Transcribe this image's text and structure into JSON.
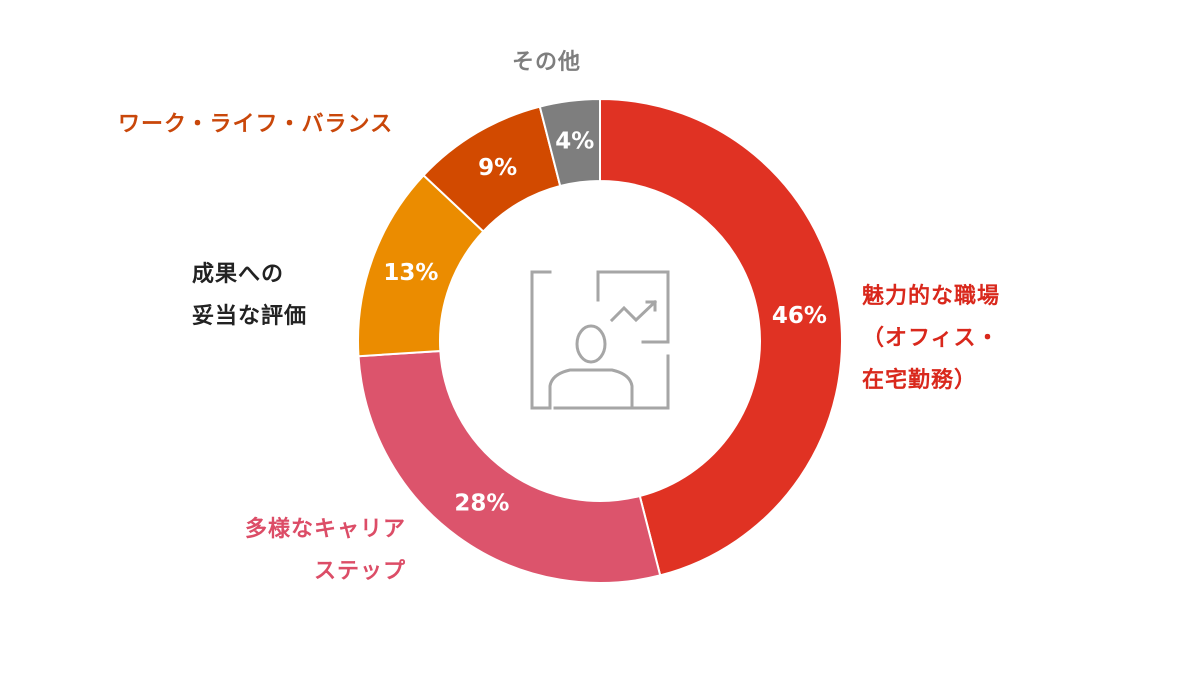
{
  "chart_data": {
    "type": "pie",
    "title": "",
    "slices": [
      {
        "label": "魅力的な職場\n（オフィス・\n在宅勤務）",
        "value": 46,
        "value_label": "46%",
        "color": "#e03223"
      },
      {
        "label": "多様なキャリア\nステップ",
        "value": 28,
        "value_label": "28%",
        "color": "#dc546c"
      },
      {
        "label": "成果への\n妥当な評価",
        "value": 13,
        "value_label": "13%",
        "color": "#eb8c00"
      },
      {
        "label": "ワーク・ライフ・バランス",
        "value": 9,
        "value_label": "9%",
        "color": "#d24a00"
      },
      {
        "label": "その他",
        "value": 4,
        "value_label": "4%",
        "color": "#7e7e7e"
      }
    ],
    "label_colors": [
      "#d9281c",
      "#dc4d67",
      "#222222",
      "#c9470a",
      "#7e7e7e"
    ],
    "center_icon": "presenter-chart-icon",
    "icon_color": "#a6a6a6"
  }
}
